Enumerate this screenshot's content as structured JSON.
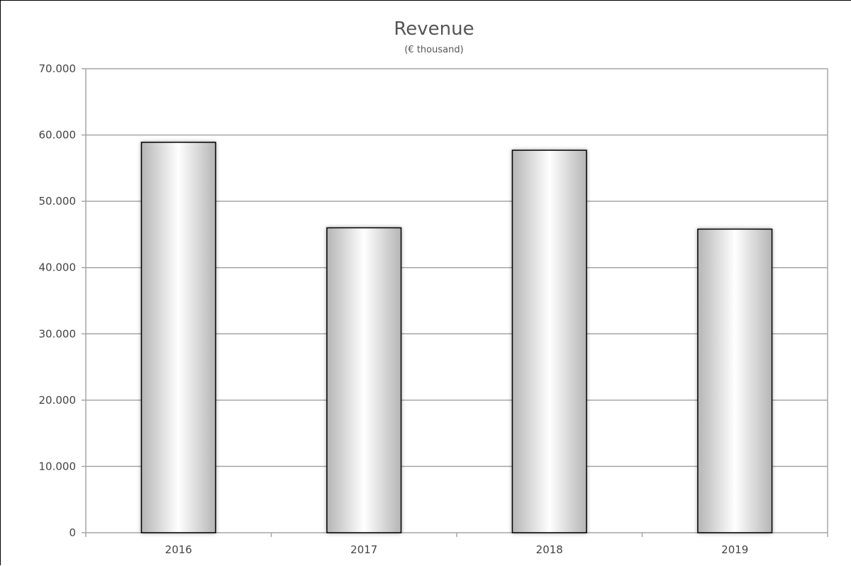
{
  "chart_data": {
    "type": "bar",
    "title": "Revenue",
    "subtitle": "(€ thousand)",
    "xlabel": "",
    "ylabel": "",
    "categories": [
      "2016",
      "2017",
      "2018",
      "2019"
    ],
    "values": [
      58900,
      46000,
      57700,
      45800
    ],
    "ylim": [
      0,
      70000
    ],
    "yticks": [
      0,
      10000,
      20000,
      30000,
      40000,
      50000,
      60000,
      70000
    ],
    "ytick_labels": [
      "0",
      "10.000",
      "20.000",
      "30.000",
      "40.000",
      "50.000",
      "60.000",
      "70.000"
    ],
    "grid": true,
    "legend": "none",
    "colors": {
      "bar_edge": "#000000",
      "bar_light": "#ffffff",
      "bar_dark": "#b8b8b8",
      "grid": "#a6a6a6",
      "axis": "#a6a6a6",
      "text": "#444444"
    }
  }
}
